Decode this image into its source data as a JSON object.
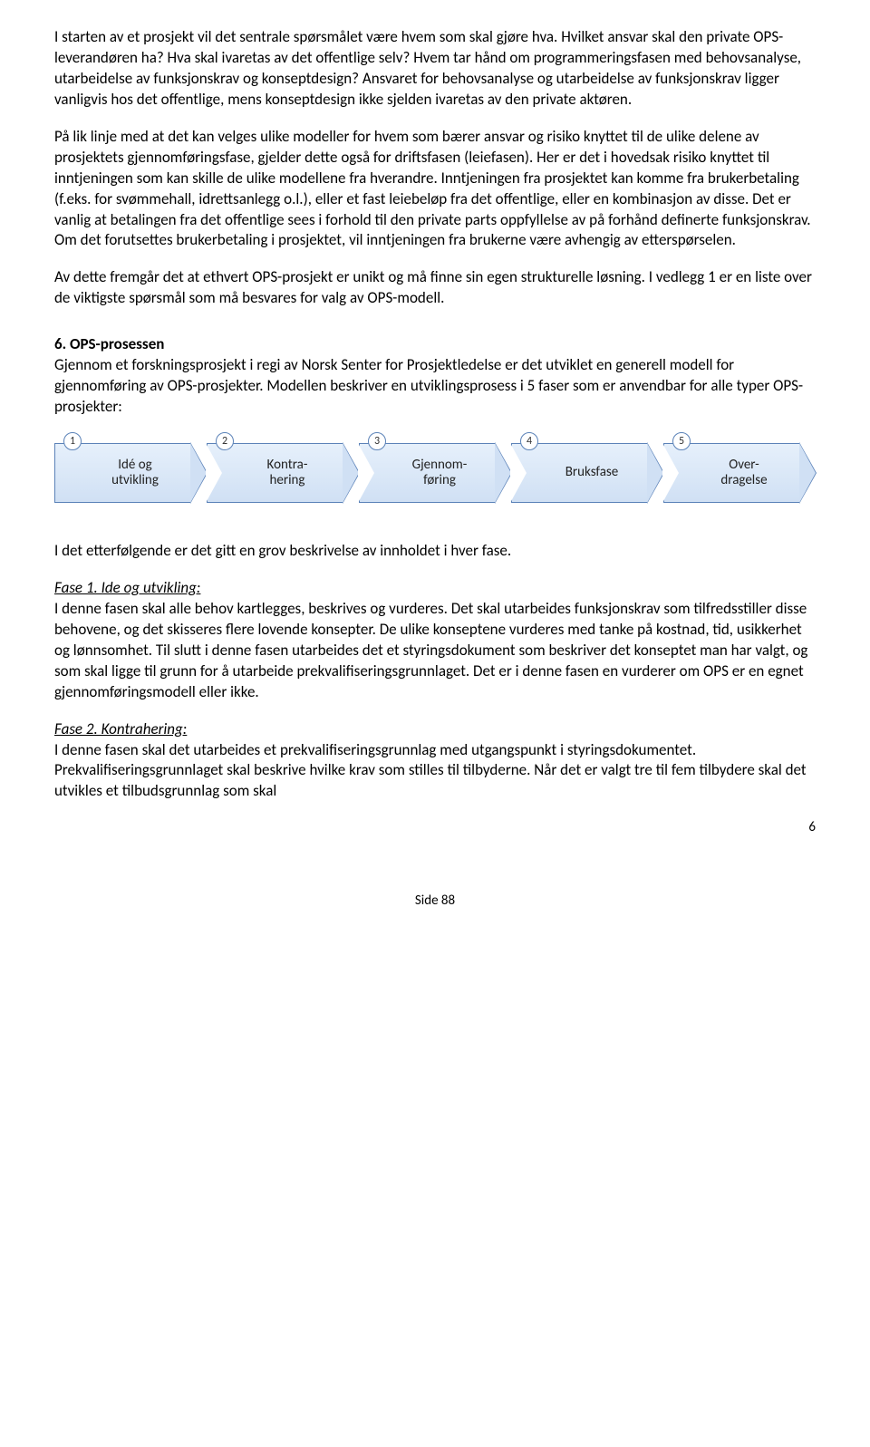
{
  "paragraphs": {
    "p1": "I starten av et prosjekt vil det sentrale spørsmålet være hvem som skal gjøre hva. Hvilket ansvar skal den private OPS-leverandøren ha? Hva skal ivaretas av det offentlige selv? Hvem tar hånd om programmeringsfasen med behovsanalyse, utarbeidelse av funksjonskrav og konseptdesign? Ansvaret for behovsanalyse og utarbeidelse av funksjonskrav ligger vanligvis hos det offentlige, mens konseptdesign ikke sjelden ivaretas av den private aktøren.",
    "p2": "På lik linje med at det kan velges ulike modeller for hvem som bærer ansvar og risiko knyttet til de ulike delene av prosjektets gjennomføringsfase, gjelder dette også for driftsfasen (leiefasen). Her er det i hovedsak risiko knyttet til inntjeningen som kan skille de ulike modellene fra hverandre. Inntjeningen fra prosjektet kan komme fra brukerbetaling (f.eks. for svømmehall, idrettsanlegg o.l.), eller et fast leiebeløp fra det offentlige, eller en kombinasjon av disse. Det er vanlig at betalingen fra det offentlige sees i forhold til den private parts oppfyllelse av på forhånd definerte funksjonskrav. Om det forutsettes brukerbetaling i prosjektet, vil inntjeningen fra brukerne være avhengig av etterspørselen.",
    "p3": "Av dette fremgår det at ethvert OPS-prosjekt er unikt og må finne sin egen strukturelle løsning. I vedlegg 1 er en liste over de viktigste spørsmål som må besvares for valg av OPS-modell.",
    "heading6": "6. OPS-prosessen",
    "p4": "Gjennom et forskningsprosjekt i regi av Norsk Senter for Prosjektledelse er det utviklet en generell modell for gjennomføring av OPS-prosjekter. Modellen beskriver en utviklingsprosess i 5 faser som er anvendbar for alle typer OPS-prosjekter:",
    "p5": "I det etterfølgende er det gitt en grov beskrivelse av innholdet i hver fase.",
    "fase1_title": "Fase 1. Ide og utvikling:",
    "fase1_body": "I denne fasen skal alle behov kartlegges, beskrives og vurderes. Det skal utarbeides funksjonskrav som tilfredsstiller disse behovene, og det skisseres flere lovende konsepter. De ulike konseptene vurderes med tanke på kostnad, tid, usikkerhet og lønnsomhet. Til slutt i denne fasen utarbeides det et styringsdokument som beskriver det konseptet man har valgt, og som skal ligge til grunn for å utarbeide prekvalifiseringsgrunnlaget. Det er i denne fasen en vurderer om OPS er en egnet gjennomføringsmodell eller ikke.",
    "fase2_title": "Fase 2. Kontrahering:",
    "fase2_body": "I denne fasen skal det utarbeides et prekvalifiseringsgrunnlag med utgangspunkt i styringsdokumentet. Prekvalifiseringsgrunnlaget skal beskrive hvilke krav som stilles til tilbyderne. Når det er valgt tre til fem tilbydere skal det utvikles et tilbudsgrunnlag som skal"
  },
  "diagram": {
    "type": "process-arrows",
    "arrow_fill_top": "#e6f0fb",
    "arrow_fill_bottom": "#d0e0f4",
    "arrow_border": "#5b82b8",
    "label_color": "#222222",
    "label_fontsize": 15,
    "circle_bg": "#ffffff",
    "circle_border": "#5b82b8",
    "steps": [
      {
        "num": "1",
        "label_line1": "Idé og",
        "label_line2": "utvikling"
      },
      {
        "num": "2",
        "label_line1": "Kontra-",
        "label_line2": "hering"
      },
      {
        "num": "3",
        "label_line1": "Gjennom-",
        "label_line2": "føring"
      },
      {
        "num": "4",
        "label_line1": "Bruksfase",
        "label_line2": ""
      },
      {
        "num": "5",
        "label_line1": "Over-",
        "label_line2": "dragelse"
      }
    ]
  },
  "footer": {
    "side_label": "Side 88",
    "page_num": "6"
  }
}
